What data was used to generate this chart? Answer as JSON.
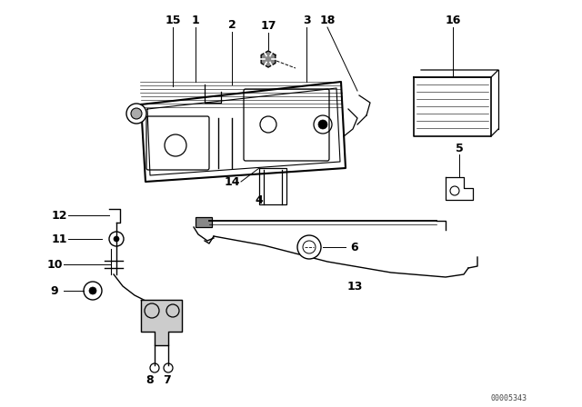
{
  "bg_color": "#ffffff",
  "part_number_label": "00005343",
  "line_color": "#000000",
  "lw_main": 1.2,
  "lw_thin": 0.6,
  "label_fontsize": 9,
  "figsize": [
    6.4,
    4.48
  ],
  "dpi": 100,
  "xlim": [
    0,
    640
  ],
  "ylim": [
    0,
    448
  ]
}
